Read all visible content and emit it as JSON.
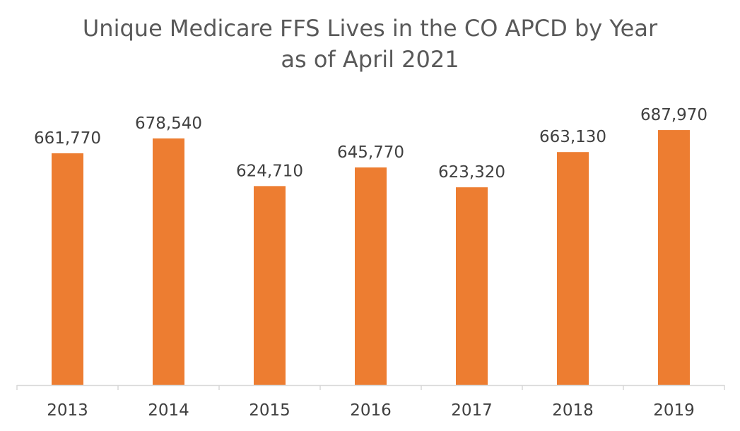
{
  "chart_data": {
    "type": "bar",
    "title": "Unique Medicare FFS Lives in the CO APCD by Year",
    "subtitle": "as of April 2021",
    "categories": [
      "2013",
      "2014",
      "2015",
      "2016",
      "2017",
      "2018",
      "2019"
    ],
    "values": [
      661770,
      678540,
      624710,
      645770,
      623320,
      663130,
      687970
    ],
    "value_labels": [
      "661,770",
      "678,540",
      "624,710",
      "645,770",
      "623,320",
      "663,130",
      "687,970"
    ],
    "ylim": [
      400000,
      700000
    ],
    "grid": false,
    "legend": "none",
    "bar_color": "#ED7D31",
    "axis_color": "#D9D9D9"
  }
}
